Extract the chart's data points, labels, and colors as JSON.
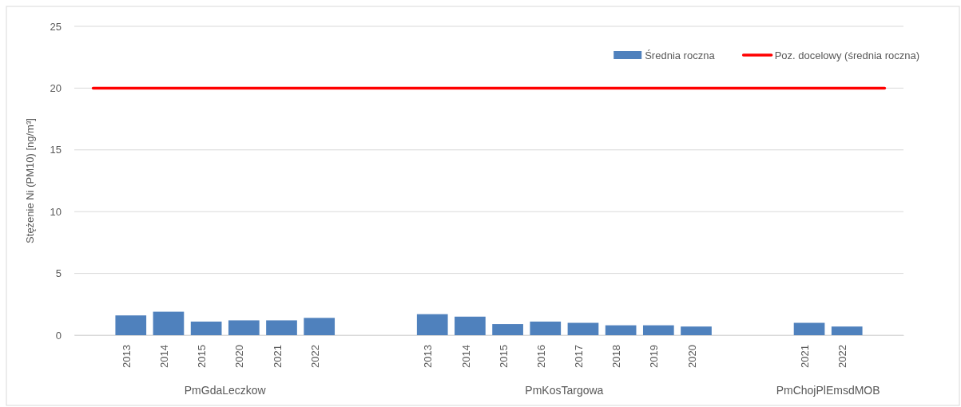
{
  "chart_data": {
    "type": "bar",
    "ylabel": "Stężenie Ni (PM10) [ng/m³]",
    "categories": [
      null,
      "2013",
      "2014",
      "2015",
      "2020",
      "2021",
      "2022",
      null,
      null,
      "2013",
      "2014",
      "2015",
      "2016",
      "2017",
      "2018",
      "2019",
      "2020",
      null,
      null,
      "2021",
      "2022",
      null
    ],
    "series": [
      {
        "name": "Średnia roczna",
        "color": "#4f81bd",
        "values": [
          null,
          1.6,
          1.9,
          1.1,
          1.2,
          1.2,
          1.4,
          null,
          null,
          1.7,
          1.5,
          0.9,
          1.1,
          1.0,
          0.8,
          0.8,
          0.7,
          null,
          null,
          1.0,
          0.7,
          null
        ]
      },
      {
        "name": "Poz. docelowy (średnia roczna)",
        "type": "line",
        "color": "#ff0000",
        "values": [
          20,
          20,
          20,
          20,
          20,
          20,
          20,
          20,
          20,
          20,
          20,
          20,
          20,
          20,
          20,
          20,
          20,
          20,
          20,
          20,
          20,
          20
        ]
      }
    ],
    "annotations": [
      "PmGdaLeczkow",
      "PmKosTargowa",
      "PmChojPlEmsdMOB"
    ],
    "ylim": [
      0,
      25
    ],
    "yticks": [
      0,
      5,
      10,
      15,
      20,
      25
    ],
    "grid": "y",
    "legend": "top right",
    "marker": "none",
    "line_style": "solid"
  }
}
